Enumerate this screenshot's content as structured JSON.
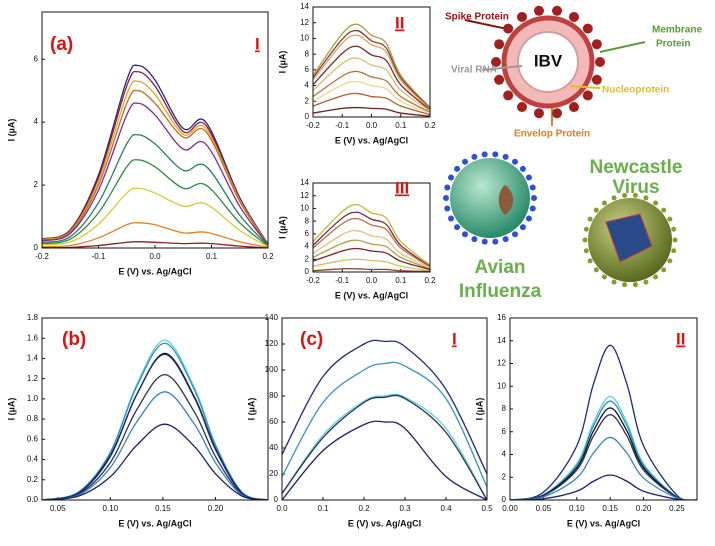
{
  "chart_data": [
    {
      "type": "line",
      "panel_label": "(a)",
      "subplot_label": "I",
      "x_label": "E (V) vs. Ag/AgCl",
      "y_label": "I (µA)",
      "x": [
        -0.2,
        -0.15,
        -0.1,
        -0.05,
        -0.03,
        0,
        0.05,
        0.09,
        0.15,
        0.2
      ],
      "xlim": [
        -0.2,
        0.2
      ],
      "xticks": [
        -0.2,
        -0.1,
        {
          "value": 0,
          "label": "0.0"
        },
        0.1,
        0.2
      ],
      "ylim": [
        0,
        7.5
      ],
      "yticks": [
        0,
        2,
        4,
        6
      ],
      "series": [
        {
          "color": "#1f2a7a",
          "values": [
            0.29,
            0.58,
            2.32,
            5.34,
            5.8,
            5.34,
            3.8,
            4.0,
            1.6,
            0.12
          ]
        },
        {
          "color": "#8b1a4a",
          "values": [
            0.28,
            0.56,
            2.24,
            5.15,
            5.6,
            5.15,
            3.7,
            3.9,
            1.56,
            0.12
          ]
        },
        {
          "color": "#e0a818",
          "values": [
            0.27,
            0.53,
            2.12,
            4.88,
            5.3,
            4.88,
            3.61,
            3.8,
            1.52,
            0.11
          ]
        },
        {
          "color": "#c86a1e",
          "values": [
            0.25,
            0.5,
            2.0,
            4.6,
            5.0,
            4.6,
            3.52,
            3.7,
            1.48,
            0.11
          ]
        },
        {
          "color": "#7b2d8e",
          "values": [
            0.23,
            0.46,
            1.84,
            4.23,
            4.6,
            4.23,
            3.14,
            3.3,
            1.32,
            0.1
          ]
        },
        {
          "color": "#2a7a6a",
          "values": [
            0.18,
            0.36,
            1.44,
            3.31,
            3.6,
            3.31,
            2.47,
            2.6,
            1.04,
            0.08
          ]
        },
        {
          "color": "#2e8b3e",
          "values": [
            0.14,
            0.28,
            1.12,
            2.58,
            2.8,
            2.58,
            1.9,
            2.0,
            0.8,
            0.06
          ]
        },
        {
          "color": "#d8c838",
          "values": [
            0.1,
            0.19,
            0.76,
            1.75,
            1.9,
            1.75,
            1.33,
            1.4,
            0.56,
            0.04
          ]
        },
        {
          "color": "#e08020",
          "values": [
            0.04,
            0.08,
            0.32,
            0.74,
            0.8,
            0.74,
            0.48,
            0.5,
            0.2,
            0.02
          ]
        },
        {
          "color": "#8b2020",
          "values": [
            0.01,
            0.02,
            0.08,
            0.18,
            0.2,
            0.18,
            0.14,
            0.15,
            0.06,
            0
          ]
        }
      ]
    },
    {
      "type": "line",
      "subplot_label": "II",
      "x_label": "E (V) vs. Ag/AgCl",
      "y_label": "I (µA)",
      "x": [
        -0.2,
        -0.1,
        -0.05,
        0,
        0.05,
        0.1,
        0.2
      ],
      "xlim": [
        -0.2,
        0.2
      ],
      "xticks": [
        -0.2,
        -0.1,
        {
          "value": 0,
          "label": "0.0"
        },
        0.1,
        0.2
      ],
      "ylim": [
        0,
        14
      ],
      "yticks": [
        0,
        2,
        4,
        6,
        8,
        10,
        12,
        14
      ],
      "series": [
        {
          "color": "#a8a040",
          "values": [
            5.3,
            10.6,
            11.8,
            10.4,
            9.4,
            5.3,
            1.2
          ]
        },
        {
          "color": "#8b3a3a",
          "values": [
            5.0,
            9.9,
            11.0,
            9.7,
            8.8,
            5.0,
            1.1
          ]
        },
        {
          "color": "#e0a060",
          "values": [
            4.7,
            9.4,
            10.4,
            9.2,
            8.3,
            4.7,
            1.0
          ]
        },
        {
          "color": "#7a2a2a",
          "values": [
            4.1,
            8.1,
            9.0,
            7.9,
            7.2,
            4.1,
            0.9
          ]
        },
        {
          "color": "#d8c070",
          "values": [
            3.4,
            6.8,
            7.5,
            6.6,
            6.0,
            3.4,
            0.8
          ]
        },
        {
          "color": "#c07040",
          "values": [
            2.6,
            5.2,
            5.8,
            5.1,
            4.6,
            2.6,
            0.6
          ]
        },
        {
          "color": "#e8d890",
          "values": [
            2.0,
            4.1,
            4.5,
            4.0,
            3.6,
            2.0,
            0.5
          ]
        },
        {
          "color": "#b06030",
          "values": [
            1.4,
            2.7,
            3.0,
            2.6,
            2.4,
            1.4,
            0.3
          ]
        },
        {
          "color": "#702020",
          "values": [
            0.5,
            1.1,
            1.2,
            1.1,
            1.0,
            0.5,
            0.1
          ]
        }
      ]
    },
    {
      "type": "line",
      "subplot_label": "III",
      "x_label": "E (V) vs. Ag/AgCl",
      "y_label": "I (µA)",
      "x": [
        -0.2,
        -0.1,
        -0.05,
        0,
        0.05,
        0.1,
        0.2
      ],
      "xlim": [
        -0.2,
        0.2
      ],
      "xticks": [
        -0.2,
        -0.1,
        {
          "value": 0,
          "label": "0.0"
        },
        0.1,
        0.2
      ],
      "ylim": [
        0,
        14
      ],
      "yticks": [
        0,
        2,
        4,
        6,
        8,
        10,
        12,
        14
      ],
      "series": [
        {
          "color": "#c8b830",
          "values": [
            4.8,
            9.5,
            10.6,
            9.3,
            8.5,
            4.8,
            1.1
          ]
        },
        {
          "color": "#7a2a4a",
          "values": [
            4.2,
            8.5,
            9.4,
            8.3,
            7.5,
            4.2,
            0.9
          ]
        },
        {
          "color": "#c07040",
          "values": [
            3.8,
            7.6,
            8.4,
            7.4,
            6.7,
            3.8,
            0.8
          ]
        },
        {
          "color": "#e8c080",
          "values": [
            2.9,
            5.9,
            6.5,
            5.7,
            5.2,
            2.9,
            0.7
          ]
        },
        {
          "color": "#b0a050",
          "values": [
            2.3,
            4.5,
            5.0,
            4.4,
            4.0,
            2.3,
            0.5
          ]
        },
        {
          "color": "#7a2020",
          "values": [
            1.7,
            3.3,
            3.7,
            3.3,
            3.0,
            1.7,
            0.4
          ]
        },
        {
          "color": "#d8c060",
          "values": [
            0.9,
            1.8,
            2.0,
            1.8,
            1.6,
            0.9,
            0.2
          ]
        },
        {
          "color": "#8b4a30",
          "values": [
            0.2,
            0.5,
            0.5,
            0.4,
            0.4,
            0.2,
            0.1
          ]
        }
      ]
    },
    {
      "type": "line",
      "panel_label": "(b)",
      "x_label": "E (V) vs. Ag/AgCl",
      "y_label": "I (µA)",
      "x": [
        0.035,
        0.07,
        0.1,
        0.125,
        0.152,
        0.18,
        0.2,
        0.225,
        0.25
      ],
      "xlim": [
        0.035,
        0.25
      ],
      "xticks": [
        0.05,
        {
          "value": 0.1,
          "label": "0.10"
        },
        0.15,
        {
          "value": 0.2,
          "label": "0.20"
        }
      ],
      "ylim": [
        0,
        1.8
      ],
      "yticks": [
        {
          "value": 0,
          "label": "0.0"
        },
        0.2,
        0.4,
        0.6,
        0.8,
        {
          "value": 1,
          "label": "1.0"
        },
        1.2,
        1.4,
        1.6,
        1.8
      ],
      "series": [
        {
          "color": "#5ad0e0",
          "values": [
            0,
            0.08,
            0.47,
            1.14,
            1.58,
            1.11,
            0.55,
            0.08,
            0
          ]
        },
        {
          "color": "#2a90c0",
          "values": [
            0,
            0.08,
            0.47,
            1.12,
            1.55,
            1.09,
            0.54,
            0.08,
            0
          ]
        },
        {
          "color": "#111111",
          "values": [
            0,
            0.07,
            0.44,
            1.04,
            1.45,
            1.02,
            0.51,
            0.07,
            0
          ]
        },
        {
          "color": "#1c2a7a",
          "values": [
            0,
            0.07,
            0.43,
            1.04,
            1.44,
            1.01,
            0.5,
            0.07,
            0
          ]
        },
        {
          "color": "#2a3050",
          "values": [
            0,
            0.06,
            0.37,
            0.89,
            1.24,
            0.87,
            0.43,
            0.06,
            0
          ]
        },
        {
          "color": "#3a80c8",
          "values": [
            0,
            0.05,
            0.32,
            0.77,
            1.07,
            0.75,
            0.37,
            0.05,
            0
          ]
        },
        {
          "color": "#1a2070",
          "values": [
            0,
            0.04,
            0.23,
            0.54,
            0.75,
            0.53,
            0.26,
            0.04,
            0
          ]
        }
      ]
    },
    {
      "type": "line",
      "panel_label": "(c)",
      "subplot_label": "I",
      "x_label": "E (V) vs. Ag/AgCl",
      "y_label": "I (µA)",
      "x": [
        0,
        0.1,
        0.2,
        0.25,
        0.3,
        0.4,
        0.5
      ],
      "xlim": [
        0,
        0.5
      ],
      "xticks": [
        {
          "value": 0,
          "label": "0.0"
        },
        0.1,
        0.2,
        0.3,
        0.4,
        0.5
      ],
      "ylim": [
        0,
        140
      ],
      "yticks": [
        0,
        20,
        40,
        60,
        80,
        100,
        120,
        140
      ],
      "series": [
        {
          "color": "#1c2a7a",
          "values": [
            35,
            95,
            120,
            122,
            118,
            85,
            20
          ]
        },
        {
          "color": "#3a90c8",
          "values": [
            18,
            75,
            100,
            105,
            103,
            78,
            10
          ]
        },
        {
          "color": "#5ad0e0",
          "values": [
            5,
            50,
            76,
            80,
            79,
            55,
            0
          ]
        },
        {
          "color": "#2a3050",
          "values": [
            5,
            48,
            75,
            79,
            78,
            52,
            0
          ]
        },
        {
          "color": "#1a2070",
          "values": [
            0,
            38,
            58,
            60,
            55,
            18,
            0
          ]
        }
      ]
    },
    {
      "type": "line",
      "subplot_label": "II",
      "x_label": "E (V) vs. Ag/AgCl",
      "y_label": "I (µA)",
      "x": [
        0,
        0.05,
        0.1,
        0.125,
        0.15,
        0.175,
        0.2,
        0.25,
        0.28
      ],
      "xlim": [
        0,
        0.28
      ],
      "xticks": [
        {
          "value": 0,
          "label": "0.00"
        },
        0.05,
        {
          "value": 0.1,
          "label": "0.10"
        },
        0.15,
        {
          "value": 0.2,
          "label": "0.20"
        },
        0.25
      ],
      "ylim": [
        0,
        16
      ],
      "yticks": [
        0,
        2,
        4,
        6,
        8,
        10,
        12,
        14,
        16
      ],
      "series": [
        {
          "color": "#1c2a7a",
          "values": [
            0,
            0.68,
            4.76,
            10.2,
            13.6,
            10.2,
            4.76,
            0.41,
            0
          ]
        },
        {
          "color": "#5ad0e0",
          "values": [
            0,
            0.46,
            3.19,
            6.83,
            9.1,
            6.83,
            3.19,
            0.27,
            0
          ]
        },
        {
          "color": "#2a90c0",
          "values": [
            0,
            0.44,
            3.05,
            6.53,
            8.7,
            6.53,
            3.05,
            0.26,
            0
          ]
        },
        {
          "color": "#111111",
          "values": [
            0,
            0.41,
            2.84,
            6.08,
            8.1,
            6.08,
            2.84,
            0.24,
            0
          ]
        },
        {
          "color": "#2a3050",
          "values": [
            0,
            0.38,
            2.63,
            5.63,
            7.5,
            5.63,
            2.63,
            0.23,
            0
          ]
        },
        {
          "color": "#3a80c8",
          "values": [
            0,
            0.28,
            1.93,
            4.13,
            5.5,
            4.13,
            1.93,
            0.17,
            0
          ]
        },
        {
          "color": "#1a2070",
          "values": [
            0,
            0.11,
            0.77,
            1.65,
            2.2,
            1.65,
            0.77,
            0.07,
            0
          ]
        }
      ]
    }
  ],
  "illustration": {
    "spike_protein": "Spike Protein",
    "membrane_protein": [
      "Membrane",
      "Protein"
    ],
    "virus": "IBV",
    "viral_rna": "Viral RNA",
    "nucleoprotein": "Nucleoprotein",
    "envelop_protein": "Envelop Protein",
    "avian_influenza": [
      "Avian",
      "Influenza"
    ],
    "newcastle_virus": [
      "Newcastle",
      "Virus"
    ]
  }
}
